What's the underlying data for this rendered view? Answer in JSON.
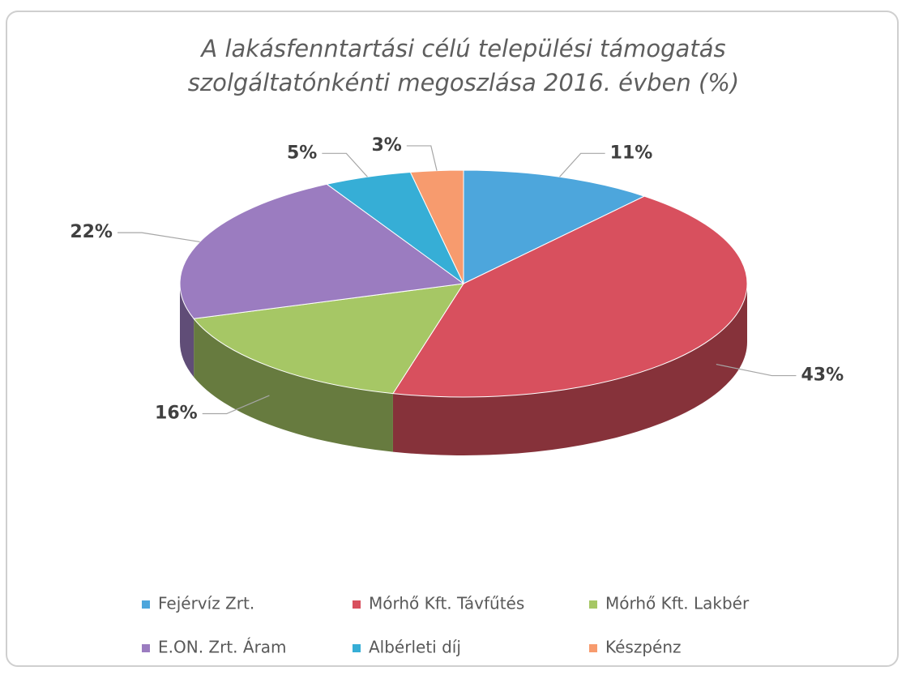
{
  "chart_data": {
    "type": "pie3d",
    "title": [
      "A lakásfenntartási célú települési támogatás",
      "szolgáltatónkénti megoszlása 2016. évben (%)"
    ],
    "categories": [
      "Fejérvíz Zrt.",
      "Mórhő Kft. Távfűtés",
      "Mórhő Kft. Lakbér",
      "E.ON. Zrt. Áram",
      "Albérleti díj",
      "Készpénz"
    ],
    "values": [
      11,
      43,
      16,
      22,
      5,
      3
    ],
    "value_labels": [
      "11%",
      "43%",
      "16%",
      "22%",
      "5%",
      "3%"
    ],
    "colors": [
      "#4da6dc",
      "#d8505e",
      "#a6c765",
      "#9b7cc0",
      "#36aed6",
      "#f79b6e"
    ],
    "legend": "bottom"
  }
}
